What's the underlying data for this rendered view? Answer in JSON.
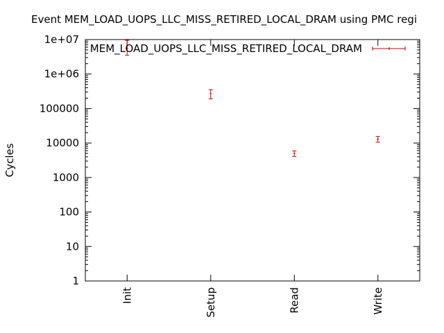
{
  "chart_data": {
    "type": "scatter",
    "title": "Event MEM_LOAD_UOPS_LLC_MISS_RETIRED_LOCAL_DRAM using PMC regi",
    "xlabel": "",
    "ylabel": "Cycles",
    "y_scale": "log",
    "ylim": [
      1,
      10000000
    ],
    "y_ticks": [
      {
        "value": 1,
        "label": "1"
      },
      {
        "value": 10,
        "label": "10"
      },
      {
        "value": 100,
        "label": "100"
      },
      {
        "value": 1000,
        "label": "1000"
      },
      {
        "value": 10000,
        "label": "10000"
      },
      {
        "value": 100000,
        "label": "100000"
      },
      {
        "value": 1000000,
        "label": "1e+06"
      },
      {
        "value": 10000000,
        "label": "1e+07"
      }
    ],
    "categories": [
      "Init",
      "Setup",
      "Read",
      "Write"
    ],
    "series": [
      {
        "name": "MEM_LOAD_UOPS_LLC_MISS_RETIRED_LOCAL_DRAM",
        "color": "#cc0000",
        "values": [
          5500000,
          270000,
          5000,
          13000
        ],
        "err_low": [
          3500000,
          190000,
          4100,
          10500
        ],
        "err_high": [
          9500000,
          350000,
          5900,
          15500
        ]
      }
    ],
    "grid": false,
    "legend_position": "top-right",
    "x_tick_rotation": "vertical"
  }
}
